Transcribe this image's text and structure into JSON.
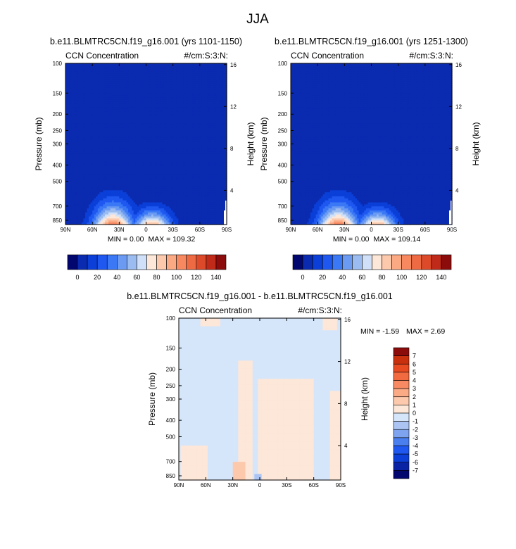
{
  "figure_title": "JJA",
  "colors": {
    "blue_scale": [
      "#02066f",
      "#0a2bb0",
      "#0b3fd8",
      "#1e58f0",
      "#3a78f5",
      "#6a9af2",
      "#9bbcf0",
      "#cfe0f8",
      "#fde7d8",
      "#fcc9ad",
      "#fba983",
      "#f78860",
      "#ee6a42",
      "#dc4a2a",
      "#c02a18",
      "#8c0b0b"
    ],
    "diff_scale": [
      "#02066f",
      "#0a23a5",
      "#0b3fd8",
      "#1e58f0",
      "#4a7ff0",
      "#7ea4ef",
      "#abc4f3",
      "#d6e6fa",
      "#fde7d8",
      "#fcc9ad",
      "#fbaa86",
      "#f78a62",
      "#f26a40",
      "#e84a22",
      "#c8300e",
      "#8c0b0b"
    ]
  },
  "chart_data": [
    {
      "type": "heatmap",
      "title": "b.e11.BLMTRC5CN.f19_g16.001 (yrs 1101-1150)",
      "left_label": "CCN Concentration",
      "right_label": "#/cm:S:3:N:",
      "xlabel": "",
      "ylabel": "Pressure (mb)",
      "ylabel_right": "Height (km)",
      "x_ticks": [
        "90N",
        "60N",
        "30N",
        "0",
        "30S",
        "60S",
        "90S"
      ],
      "y_ticks": [
        "100",
        "150",
        "200",
        "250",
        "300",
        "400",
        "500",
        "700",
        "850"
      ],
      "y_ticks_right": [
        "16",
        "12",
        "8",
        "4"
      ],
      "min_text": "MIN =   0.00",
      "max_text": "MAX = 109.32",
      "colorbar_labels": [
        "0",
        "20",
        "40",
        "60",
        "80",
        "100",
        "120",
        "140"
      ],
      "background_value": 0,
      "lat_range": [
        90,
        -90
      ],
      "pressure_range": [
        100,
        900
      ],
      "features": [
        {
          "lat": 37,
          "peak_value": 109.32,
          "top_pressure": 460,
          "lat_halfwidth": 33
        },
        {
          "lat": -7,
          "peak_value": 95,
          "top_pressure": 580,
          "lat_halfwidth": 30
        }
      ]
    },
    {
      "type": "heatmap",
      "title": "b.e11.BLMTRC5CN.f19_g16.001 (yrs 1251-1300)",
      "left_label": "CCN Concentration",
      "right_label": "#/cm:S:3:N:",
      "xlabel": "",
      "ylabel": "Pressure (mb)",
      "ylabel_right": "Height (km)",
      "x_ticks": [
        "90N",
        "60N",
        "30N",
        "0",
        "30S",
        "60S",
        "90S"
      ],
      "y_ticks": [
        "100",
        "150",
        "200",
        "250",
        "300",
        "400",
        "500",
        "700",
        "850"
      ],
      "y_ticks_right": [
        "16",
        "12",
        "8",
        "4"
      ],
      "min_text": "MIN =   0.00",
      "max_text": "MAX = 109.14",
      "colorbar_labels": [
        "0",
        "20",
        "40",
        "60",
        "80",
        "100",
        "120",
        "140"
      ],
      "background_value": 0,
      "lat_range": [
        90,
        -90
      ],
      "pressure_range": [
        100,
        900
      ],
      "features": [
        {
          "lat": 37,
          "peak_value": 109.14,
          "top_pressure": 460,
          "lat_halfwidth": 33
        },
        {
          "lat": -7,
          "peak_value": 95,
          "top_pressure": 580,
          "lat_halfwidth": 30
        }
      ]
    },
    {
      "type": "heatmap",
      "title": "b.e11.BLMTRC5CN.f19_g16.001 - b.e11.BLMTRC5CN.f19_g16.001",
      "left_label": "CCN Concentration",
      "right_label": "#/cm:S:3:N:",
      "xlabel": "",
      "ylabel": "Pressure (mb)",
      "ylabel_right": "Height (km)",
      "x_ticks": [
        "90N",
        "60N",
        "30N",
        "0",
        "30S",
        "60S",
        "90S"
      ],
      "y_ticks": [
        "100",
        "150",
        "200",
        "250",
        "300",
        "400",
        "500",
        "700",
        "850"
      ],
      "y_ticks_right": [
        "16",
        "12",
        "8",
        "4"
      ],
      "min_text": "MIN =  -1.59",
      "max_text": "MAX =   2.69",
      "colorbar_labels": [
        "7",
        "6",
        "5",
        "4",
        "3",
        "2",
        "1",
        "0",
        "-1",
        "-2",
        "-3",
        "-4",
        "-5",
        "-6",
        "-7"
      ],
      "background_value": -0.5,
      "lat_range": [
        90,
        -90
      ],
      "pressure_range": [
        100,
        900
      ],
      "positive_regions": [
        {
          "lat_from": 24,
          "lat_to": 8,
          "pressure_from": 180,
          "pressure_to": 900,
          "value": 0.5
        },
        {
          "lat_from": 2,
          "lat_to": -60,
          "pressure_from": 230,
          "pressure_to": 900,
          "value": 0.5
        },
        {
          "lat_from": 88,
          "lat_to": 58,
          "pressure_from": 560,
          "pressure_to": 900,
          "value": 0.5
        },
        {
          "lat_from": 30,
          "lat_to": 16,
          "pressure_from": 700,
          "pressure_to": 900,
          "value": 1.5
        },
        {
          "lat_from": 66,
          "lat_to": 44,
          "pressure_from": 100,
          "pressure_to": 112,
          "value": 0.5
        },
        {
          "lat_from": -70,
          "lat_to": -86,
          "pressure_from": 100,
          "pressure_to": 118,
          "value": 0.5
        },
        {
          "lat_from": -78,
          "lat_to": -90,
          "pressure_from": 270,
          "pressure_to": 900,
          "value": 0.5
        }
      ],
      "negative_regions": [
        {
          "lat_from": 6,
          "lat_to": -2,
          "pressure_from": 830,
          "pressure_to": 900,
          "value": -1.5
        }
      ]
    }
  ]
}
